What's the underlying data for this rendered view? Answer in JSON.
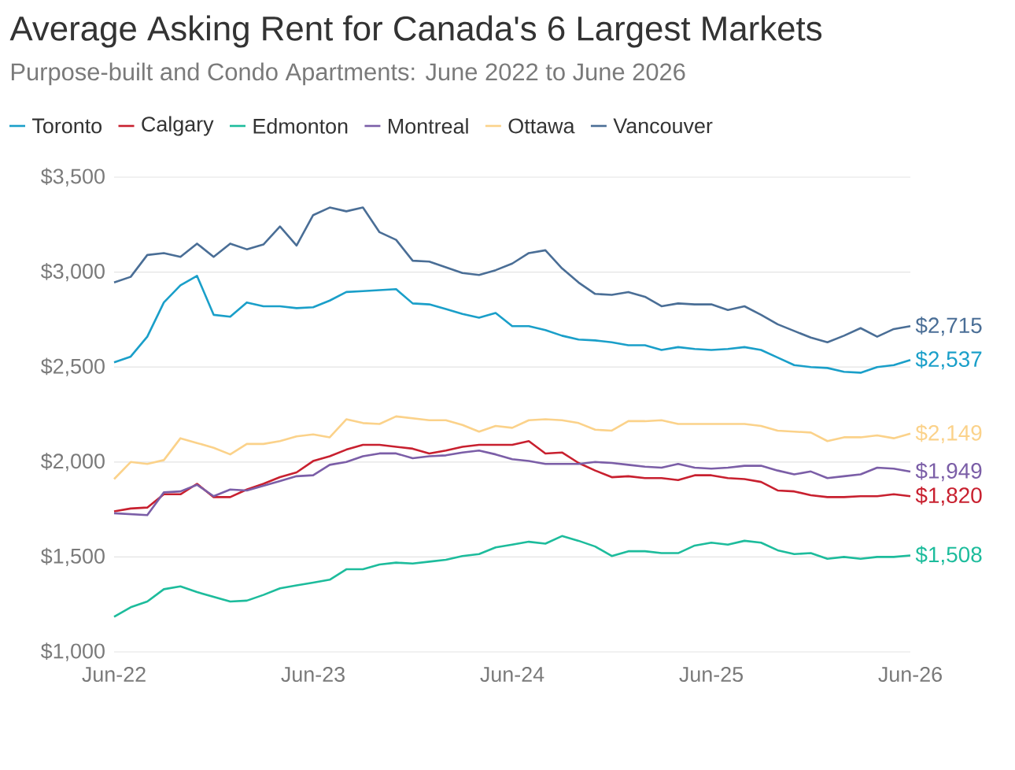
{
  "chart_data": {
    "type": "line",
    "title": "Average Asking Rent for Canada's 6 Largest Markets",
    "subtitle": "Purpose-built and Condo Apartments: June 2022 to June 2026",
    "x": [
      "2022-06",
      "2022-07",
      "2022-08",
      "2022-09",
      "2022-10",
      "2022-11",
      "2022-12",
      "2023-01",
      "2023-02",
      "2023-03",
      "2023-04",
      "2023-05",
      "2023-06",
      "2023-07",
      "2023-08",
      "2023-09",
      "2023-10",
      "2023-11",
      "2023-12",
      "2024-01",
      "2024-02",
      "2024-03",
      "2024-04",
      "2024-05",
      "2024-06",
      "2024-07",
      "2024-08",
      "2024-09",
      "2024-10",
      "2024-11",
      "2024-12",
      "2025-01",
      "2025-02",
      "2025-03",
      "2025-04",
      "2025-05",
      "2025-06",
      "2025-07",
      "2025-08",
      "2025-09",
      "2025-10",
      "2025-11",
      "2025-12",
      "2026-01",
      "2026-02",
      "2026-03",
      "2026-04",
      "2026-05",
      "2026-06"
    ],
    "xlim": [
      "2022-06",
      "2026-06"
    ],
    "xticks": [
      {
        "value": "2022-06",
        "label": "Jun-22"
      },
      {
        "value": "2023-06",
        "label": "Jun-23"
      },
      {
        "value": "2024-06",
        "label": "Jun-24"
      },
      {
        "value": "2025-06",
        "label": "Jun-25"
      },
      {
        "value": "2026-06",
        "label": "Jun-26"
      }
    ],
    "ylim": [
      1000,
      3500
    ],
    "yticks": [
      {
        "value": 1000,
        "label": "$1,000"
      },
      {
        "value": 1500,
        "label": "$1,500"
      },
      {
        "value": 2000,
        "label": "$2,000"
      },
      {
        "value": 2500,
        "label": "$2,500"
      },
      {
        "value": 3000,
        "label": "$3,000"
      },
      {
        "value": 3500,
        "label": "$3,500"
      }
    ],
    "grid": "y",
    "legend": "top",
    "marker": "none",
    "line_style": "solid",
    "series": [
      {
        "name": "Toronto",
        "color": "#1a9fc9",
        "values": [
          2525,
          2555,
          2660,
          2840,
          2930,
          2980,
          2775,
          2765,
          2840,
          2820,
          2820,
          2810,
          2815,
          2850,
          2895,
          2900,
          2905,
          2910,
          2835,
          2830,
          2805,
          2780,
          2760,
          2785,
          2715,
          2715,
          2695,
          2665,
          2645,
          2640,
          2630,
          2615,
          2615,
          2590,
          2605,
          2595,
          2590,
          2595,
          2605,
          2590,
          2550,
          2510,
          2500,
          2495,
          2475,
          2470,
          2500,
          2510,
          2537
        ],
        "value_labels": [
          null,
          null,
          null,
          null,
          null,
          null,
          null,
          null,
          null,
          null,
          null,
          null,
          null,
          null,
          null,
          null,
          null,
          null,
          null,
          null,
          null,
          null,
          null,
          null,
          null,
          null,
          null,
          null,
          null,
          null,
          null,
          null,
          null,
          null,
          null,
          null,
          null,
          null,
          null,
          null,
          null,
          null,
          null,
          null,
          null,
          null,
          null,
          null,
          "$2,537"
        ]
      },
      {
        "name": "Calgary",
        "color": "#c8202f",
        "values": [
          1740,
          1755,
          1760,
          1830,
          1830,
          1885,
          1815,
          1815,
          1855,
          1885,
          1920,
          1945,
          2005,
          2030,
          2065,
          2090,
          2090,
          2080,
          2070,
          2045,
          2060,
          2080,
          2090,
          2090,
          2090,
          2110,
          2045,
          2050,
          1995,
          1955,
          1920,
          1925,
          1915,
          1915,
          1905,
          1930,
          1930,
          1915,
          1910,
          1895,
          1850,
          1845,
          1825,
          1815,
          1815,
          1820,
          1820,
          1830,
          1820
        ],
        "value_labels": [
          null,
          null,
          null,
          null,
          null,
          null,
          null,
          null,
          null,
          null,
          null,
          null,
          null,
          null,
          null,
          null,
          null,
          null,
          null,
          null,
          null,
          null,
          null,
          null,
          null,
          null,
          null,
          null,
          null,
          null,
          null,
          null,
          null,
          null,
          null,
          null,
          null,
          null,
          null,
          null,
          null,
          null,
          null,
          null,
          null,
          null,
          null,
          null,
          "$1,820"
        ]
      },
      {
        "name": "Edmonton",
        "color": "#1dbc9c",
        "values": [
          1185,
          1235,
          1265,
          1330,
          1345,
          1315,
          1290,
          1265,
          1270,
          1300,
          1335,
          1350,
          1365,
          1380,
          1435,
          1435,
          1460,
          1470,
          1465,
          1475,
          1485,
          1505,
          1515,
          1550,
          1565,
          1580,
          1570,
          1610,
          1585,
          1555,
          1505,
          1530,
          1530,
          1520,
          1520,
          1560,
          1575,
          1565,
          1585,
          1575,
          1535,
          1515,
          1520,
          1490,
          1500,
          1490,
          1500,
          1500,
          1508
        ],
        "value_labels": [
          null,
          null,
          null,
          null,
          null,
          null,
          null,
          null,
          null,
          null,
          null,
          null,
          null,
          null,
          null,
          null,
          null,
          null,
          null,
          null,
          null,
          null,
          null,
          null,
          null,
          null,
          null,
          null,
          null,
          null,
          null,
          null,
          null,
          null,
          null,
          null,
          null,
          null,
          null,
          null,
          null,
          null,
          null,
          null,
          null,
          null,
          null,
          null,
          "$1,508"
        ]
      },
      {
        "name": "Montreal",
        "color": "#7b5ea7",
        "values": [
          1730,
          1725,
          1720,
          1840,
          1845,
          1880,
          1820,
          1855,
          1850,
          1875,
          1900,
          1925,
          1930,
          1985,
          2000,
          2030,
          2045,
          2045,
          2020,
          2030,
          2035,
          2050,
          2060,
          2040,
          2015,
          2005,
          1990,
          1990,
          1990,
          2000,
          1995,
          1985,
          1975,
          1970,
          1990,
          1970,
          1965,
          1970,
          1980,
          1980,
          1955,
          1935,
          1950,
          1915,
          1925,
          1935,
          1970,
          1965,
          1949
        ],
        "value_labels": [
          null,
          null,
          null,
          null,
          null,
          null,
          null,
          null,
          null,
          null,
          null,
          null,
          null,
          null,
          null,
          null,
          null,
          null,
          null,
          null,
          null,
          null,
          null,
          null,
          null,
          null,
          null,
          null,
          null,
          null,
          null,
          null,
          null,
          null,
          null,
          null,
          null,
          null,
          null,
          null,
          null,
          null,
          null,
          null,
          null,
          null,
          null,
          null,
          "$1,949"
        ]
      },
      {
        "name": "Ottawa",
        "color": "#fbd28a",
        "values": [
          1910,
          2000,
          1990,
          2010,
          2125,
          2100,
          2075,
          2040,
          2095,
          2095,
          2110,
          2135,
          2145,
          2130,
          2225,
          2205,
          2200,
          2240,
          2230,
          2220,
          2220,
          2195,
          2160,
          2190,
          2180,
          2220,
          2225,
          2220,
          2205,
          2170,
          2165,
          2215,
          2215,
          2220,
          2200,
          2200,
          2200,
          2200,
          2200,
          2190,
          2165,
          2160,
          2155,
          2110,
          2130,
          2130,
          2140,
          2125,
          2149
        ],
        "value_labels": [
          null,
          null,
          null,
          null,
          null,
          null,
          null,
          null,
          null,
          null,
          null,
          null,
          null,
          null,
          null,
          null,
          null,
          null,
          null,
          null,
          null,
          null,
          null,
          null,
          null,
          null,
          null,
          null,
          null,
          null,
          null,
          null,
          null,
          null,
          null,
          null,
          null,
          null,
          null,
          null,
          null,
          null,
          null,
          null,
          null,
          null,
          null,
          null,
          "$2,149"
        ]
      },
      {
        "name": "Vancouver",
        "color": "#4a6e96",
        "values": [
          2945,
          2975,
          3090,
          3100,
          3080,
          3150,
          3080,
          3150,
          3120,
          3145,
          3240,
          3140,
          3300,
          3340,
          3320,
          3340,
          3210,
          3170,
          3060,
          3055,
          3025,
          2995,
          2985,
          3010,
          3045,
          3100,
          3115,
          3020,
          2945,
          2885,
          2880,
          2895,
          2870,
          2820,
          2835,
          2830,
          2830,
          2800,
          2820,
          2775,
          2725,
          2690,
          2655,
          2630,
          2665,
          2705,
          2660,
          2700,
          2715
        ],
        "value_labels": [
          null,
          null,
          null,
          null,
          null,
          null,
          null,
          null,
          null,
          null,
          null,
          null,
          null,
          null,
          null,
          null,
          null,
          null,
          null,
          null,
          null,
          null,
          null,
          null,
          null,
          null,
          null,
          null,
          null,
          null,
          null,
          null,
          null,
          null,
          null,
          null,
          null,
          null,
          null,
          null,
          null,
          null,
          null,
          null,
          null,
          null,
          null,
          null,
          "$2,715"
        ]
      }
    ]
  }
}
